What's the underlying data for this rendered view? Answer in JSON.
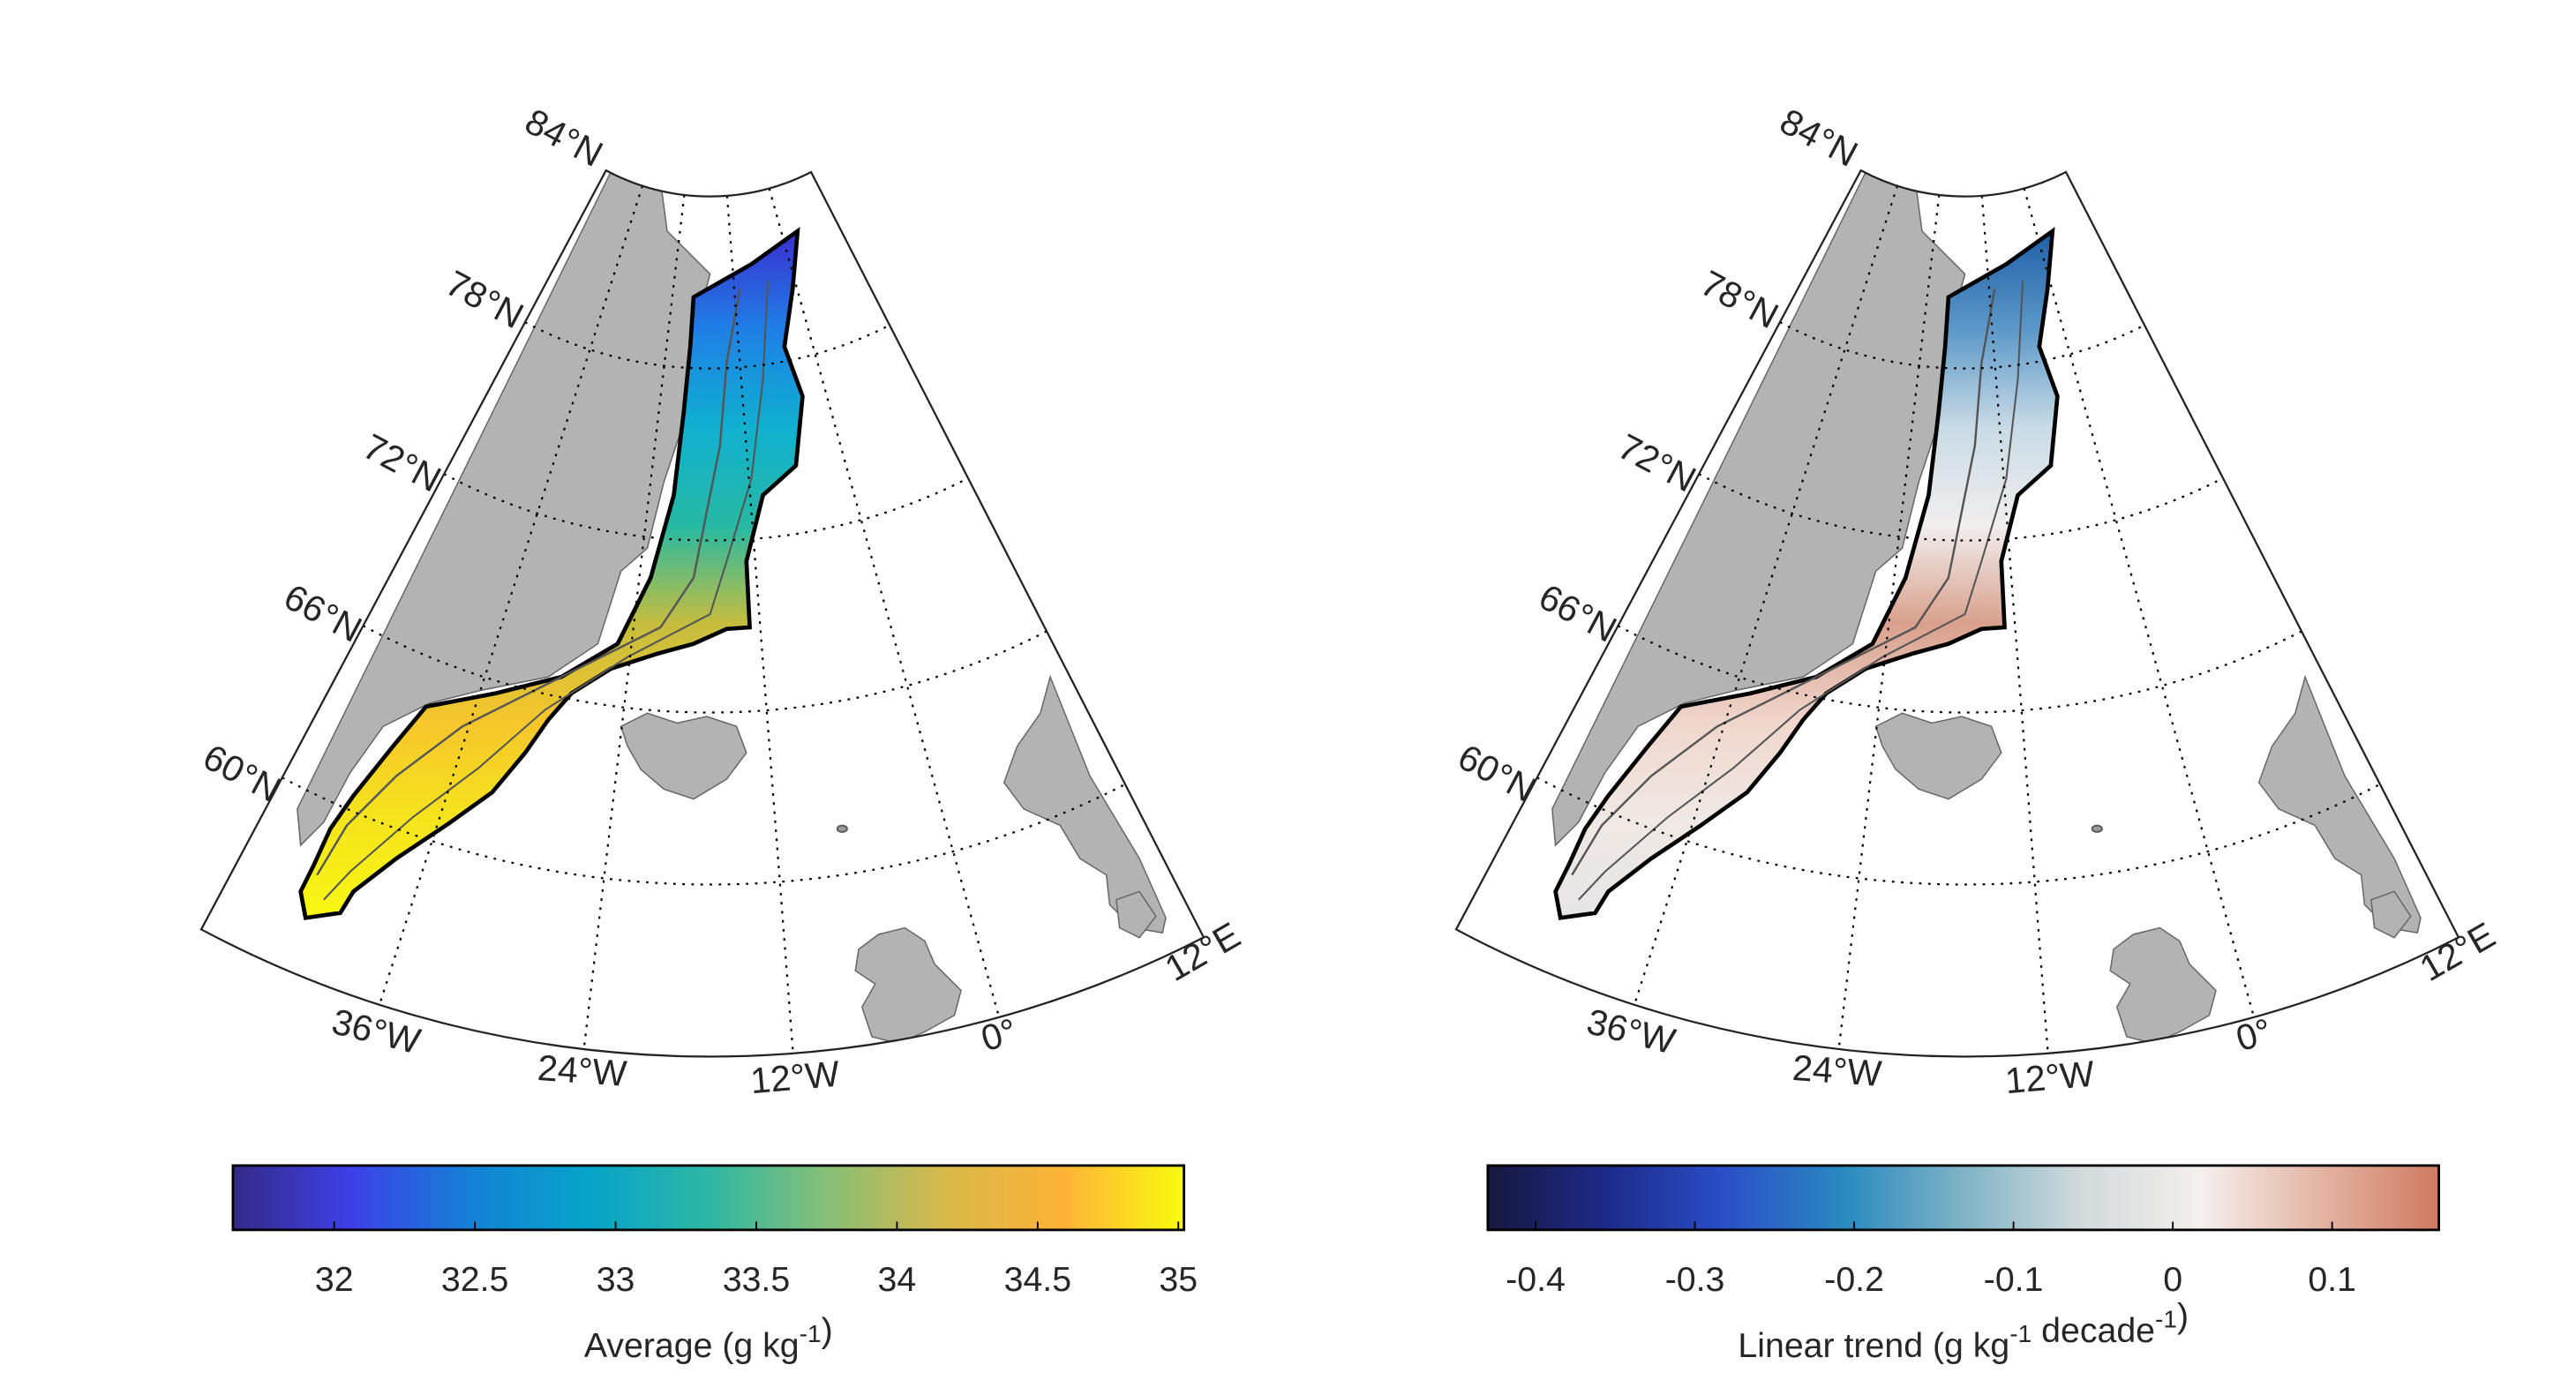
{
  "chart_data": [
    {
      "type": "heatmap",
      "subtype": "map",
      "projection": "polar wedge (East Greenland shelf)",
      "lat_ticks": [
        "84°N",
        "78°N",
        "72°N",
        "66°N",
        "60°N"
      ],
      "lon_ticks": [
        "36°W",
        "24°W",
        "12°W",
        "0°",
        "12°E"
      ],
      "colorbar": {
        "label": "Average (g kg",
        "label_sup": "-1",
        "label_end": ")",
        "ticks": [
          "32",
          "32.5",
          "33",
          "33.5",
          "34",
          "34.5",
          "35"
        ],
        "tick_values": [
          32,
          32.5,
          33,
          33.5,
          34,
          34.5,
          35
        ],
        "range": [
          31.64,
          35.02
        ],
        "colormap": "parula",
        "colors": [
          "#352a87",
          "#3e40e8",
          "#1481d6",
          "#06a4ca",
          "#2eb7a4",
          "#87bf77",
          "#d9b84a",
          "#fdb338",
          "#f9fb0e"
        ]
      },
      "field_colors": [
        "#3a2fd0",
        "#1f7fe6",
        "#10b0d0",
        "#27b9a4",
        "#c5bd3e",
        "#f6c62c",
        "#f5e41c",
        "#f8f712"
      ]
    },
    {
      "type": "heatmap",
      "subtype": "map",
      "projection": "polar wedge (East Greenland shelf)",
      "lat_ticks": [
        "84°N",
        "78°N",
        "72°N",
        "66°N",
        "60°N"
      ],
      "lon_ticks": [
        "36°W",
        "24°W",
        "12°W",
        "0°",
        "12°E"
      ],
      "colorbar": {
        "label": "Linear trend (g kg",
        "label_sup": "-1",
        "label_mid": " decade",
        "label_sup2": "-1",
        "label_end": ")",
        "ticks": [
          "-0.4",
          "-0.3",
          "-0.2",
          "-0.1",
          "0",
          "0.1"
        ],
        "tick_values": [
          -0.4,
          -0.3,
          -0.2,
          -0.1,
          0,
          0.1
        ],
        "range": [
          -0.43,
          0.167
        ],
        "colormap": "diverging blue-white-red",
        "colors": [
          "#16183e",
          "#1e2a8a",
          "#2a4fc8",
          "#2a8ac0",
          "#7fb3c6",
          "#d2dadc",
          "#f4efed",
          "#e4b4a4",
          "#cf7a62"
        ]
      },
      "field_colors": [
        "#1f5fa8",
        "#5c98c8",
        "#c9dbe6",
        "#f1eeee",
        "#d9a08c",
        "#efd6cc",
        "#f0e8e4",
        "#e6e6e6"
      ]
    }
  ],
  "colors": {
    "land": "#b3b3b3",
    "frame": "#000000",
    "grid": "#000000"
  }
}
